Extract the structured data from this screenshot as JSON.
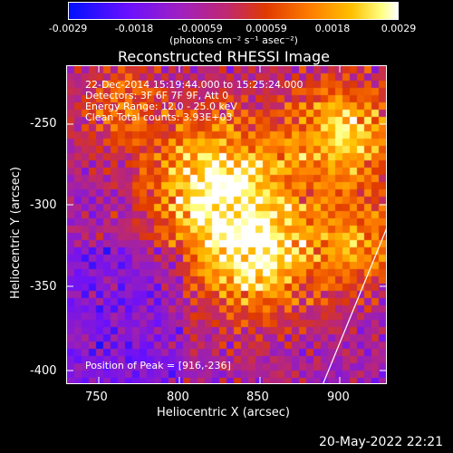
{
  "colorbar": {
    "ticks": [
      "-0.0029",
      "-0.0018",
      "-0.00059",
      "0.00059",
      "0.0018",
      "0.0029"
    ],
    "unit_label": "(photons cm⁻² s⁻¹ asec⁻²)"
  },
  "title": "Reconstructed RHESSI Image",
  "overlay": {
    "time_range": "22-Dec-2014 15:19:44.000 to 15:25:24.000",
    "detectors": "Detectors: 3F 6F 7F 9F, Att 0",
    "energy_range": "Energy Range: 12.0 - 25.0 keV",
    "algorithm": "Clean     Total counts: 3.93E+03",
    "peak": "Position of Peak = [916,-236]"
  },
  "axes": {
    "xlabel": "Heliocentric X (arcsec)",
    "ylabel": "Heliocentric Y (arcsec)",
    "xticks": [
      "750",
      "800",
      "850",
      "900"
    ],
    "yticks": [
      "-250",
      "-300",
      "-350",
      "-400"
    ]
  },
  "footer_date": "20-May-2022 22:21"
}
